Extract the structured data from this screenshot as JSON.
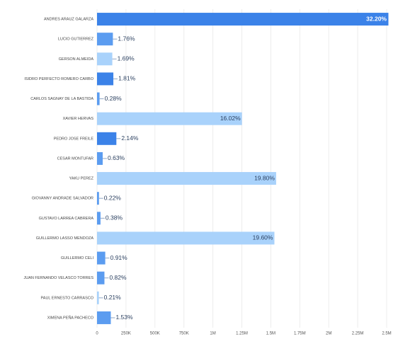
{
  "chart_data": {
    "type": "hbar",
    "categories": [
      "ANDRES ARAUZ GALARZA",
      "LUCIO GUTIERREZ",
      "GERSON ALMEIDA",
      "ISIDRO PERFECTO ROMERO CARBO",
      "CARLOS SAGNAY DE LA BASTIDA",
      "XAVIER HERVAS",
      "PEDRO JOSE FREILE",
      "CESAR MONTUFAR",
      "YAKU PEREZ",
      "GIOVANNY ANDRADE SALVADOR",
      "GUSTAVO LARREA CABRERA",
      "GUILLERMO LASSO MENDOZA",
      "GUILLERMO CELI",
      "JUAN FERNANDO VELASCO TORRES",
      "PAUL ERNESTO CARRASCO",
      "XIMENA PEÑA PACHECO"
    ],
    "values": [
      2515000,
      137000,
      132000,
      141000,
      22000,
      1251000,
      167000,
      49000,
      1546000,
      17000,
      30000,
      1531000,
      71000,
      64000,
      16000,
      119000
    ],
    "share_labels": [
      "32.20%",
      "1.76%",
      "1.69%",
      "1.81%",
      "0.28%",
      "16.02%",
      "2.14%",
      "0.63%",
      "19.80%",
      "0.22%",
      "0.38%",
      "19.60%",
      "0.91%",
      "0.82%",
      "0.21%",
      "1.53%"
    ],
    "colors": [
      "#3b82e8",
      "#5b9cf0",
      "#a9d2fb",
      "#3b82e8",
      "#5b9cf0",
      "#a9d2fb",
      "#3b82e8",
      "#5b9cf0",
      "#a9d2fb",
      "#5b9cf0",
      "#5b9cf0",
      "#a9d2fb",
      "#5b9cf0",
      "#5b9cf0",
      "#a9d2fb",
      "#5b9cf0"
    ],
    "xlim": [
      0,
      2500000
    ],
    "xticks": [
      0,
      {
        "value": 250000,
        "label": "250K"
      },
      {
        "value": 500000,
        "label": "500K"
      },
      {
        "value": 750000,
        "label": "750K"
      },
      {
        "value": 1000000,
        "label": "1M"
      },
      {
        "value": 1250000,
        "label": "1.25M"
      },
      {
        "value": 1500000,
        "label": "1.5M"
      },
      {
        "value": 1750000,
        "label": "1.75M"
      },
      {
        "value": 2000000,
        "label": "2M"
      },
      {
        "value": 2250000,
        "label": "2.25M"
      },
      {
        "value": 2500000,
        "label": "2.5M"
      }
    ],
    "grid": true
  }
}
